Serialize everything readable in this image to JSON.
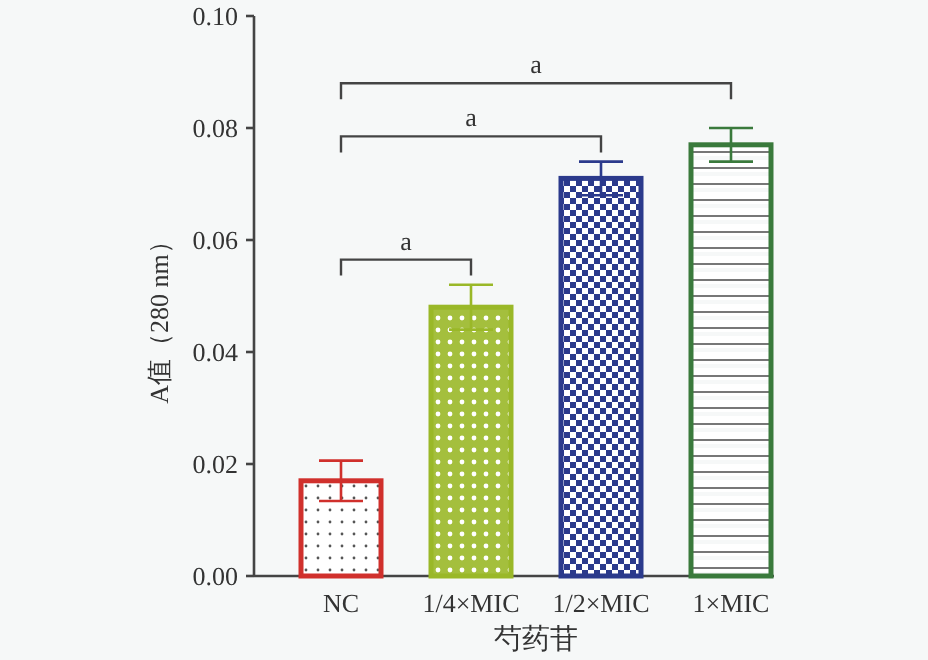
{
  "chart_data": {
    "type": "bar",
    "xlabel": "芍药苷",
    "ylabel": "A值（280 nm）",
    "categories": [
      "NC",
      "1/4×MIC",
      "1/2×MIC",
      "1×MIC"
    ],
    "values": [
      0.017,
      0.048,
      0.071,
      0.077
    ],
    "errors": [
      0.0036,
      0.004,
      0.003,
      0.003
    ],
    "colors": [
      "#d0302c",
      "#9ab828",
      "#2b3a8c",
      "#3a7a3c"
    ],
    "ylim": [
      0,
      0.1
    ],
    "yticks": [
      {
        "value": 0,
        "label": "0.00"
      },
      0.02,
      0.04,
      0.06,
      0.08,
      {
        "value": 0.1,
        "label": "0.10"
      }
    ],
    "annotations": [
      "a",
      "a",
      "a"
    ]
  }
}
